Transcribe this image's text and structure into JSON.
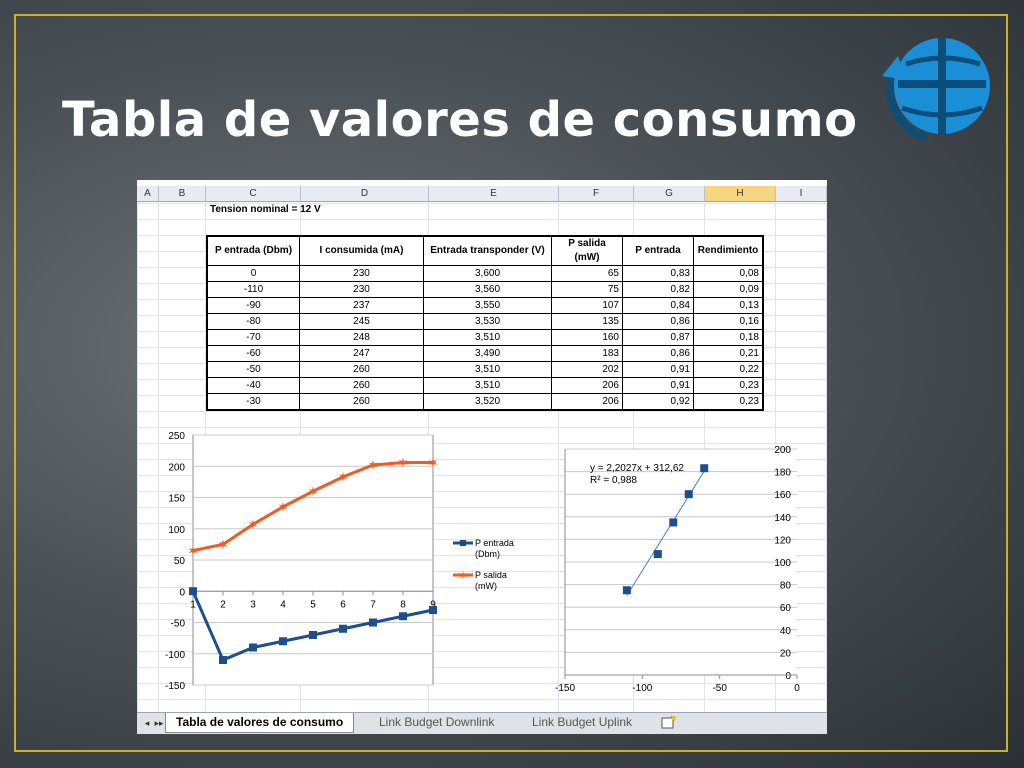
{
  "slide": {
    "title": "Tabla de valores de consumo"
  },
  "sheet": {
    "columns": [
      "A",
      "B",
      "C",
      "D",
      "E",
      "F",
      "G",
      "H",
      "I"
    ],
    "selected_column": "H",
    "nominal_label": "Tension nominal = 12 V",
    "table": {
      "headers": [
        "P entrada (Dbm)",
        "I consumida (mA)",
        "Entrada transponder (V)",
        "P salida (mW)",
        "P entrada",
        "Rendimiento"
      ],
      "rows": [
        [
          "0",
          "230",
          "3,600",
          "65",
          "0,83",
          "0,08"
        ],
        [
          "-110",
          "230",
          "3,560",
          "75",
          "0,82",
          "0,09"
        ],
        [
          "-90",
          "237",
          "3,550",
          "107",
          "0,84",
          "0,13"
        ],
        [
          "-80",
          "245",
          "3,530",
          "135",
          "0,86",
          "0,16"
        ],
        [
          "-70",
          "248",
          "3,510",
          "160",
          "0,87",
          "0,18"
        ],
        [
          "-60",
          "247",
          "3,490",
          "183",
          "0,86",
          "0,21"
        ],
        [
          "-50",
          "260",
          "3,510",
          "202",
          "0,91",
          "0,22"
        ],
        [
          "-40",
          "260",
          "3,510",
          "206",
          "0,91",
          "0,23"
        ],
        [
          "-30",
          "260",
          "3,520",
          "206",
          "0,92",
          "0,23"
        ]
      ]
    },
    "tabs": {
      "nav_first": "◂",
      "nav_last": "▸▸",
      "items": [
        "Tabla de valores de consumo",
        "Link Budget Downlink",
        "Link Budget Uplink"
      ],
      "active": 0
    }
  },
  "colors": {
    "series_blue": "#1f4e8c",
    "series_orange": "#f05a23",
    "frame": "#c9b229",
    "logo": "#1a8fd6"
  },
  "chart_data": [
    {
      "type": "line",
      "x": [
        1,
        2,
        3,
        4,
        5,
        6,
        7,
        8,
        9
      ],
      "xlim": [
        1,
        9
      ],
      "ylim": [
        -150,
        250
      ],
      "yticks": [
        -150,
        -100,
        -50,
        0,
        50,
        100,
        150,
        200,
        250
      ],
      "grid": "horizontal",
      "legend": "right",
      "series": [
        {
          "name": "P entrada (Dbm)",
          "values": [
            0,
            -110,
            -90,
            -80,
            -70,
            -60,
            -50,
            -40,
            -30
          ],
          "color": "#1f4e8c",
          "marker": "square"
        },
        {
          "name": "P salida (mW)",
          "values": [
            65,
            75,
            107,
            135,
            160,
            183,
            202,
            206,
            206
          ],
          "color": "#f05a23",
          "marker": "star"
        }
      ]
    },
    {
      "type": "scatter",
      "xlim": [
        -150,
        0
      ],
      "ylim": [
        0,
        200
      ],
      "xticks": [
        -150,
        -100,
        -50,
        0
      ],
      "yticks": [
        0,
        20,
        40,
        60,
        80,
        100,
        120,
        140,
        160,
        180,
        200
      ],
      "grid": "horizontal",
      "y_axis_position": "right",
      "points": [
        {
          "x": -110,
          "y": 75
        },
        {
          "x": -90,
          "y": 107
        },
        {
          "x": -80,
          "y": 135
        },
        {
          "x": -70,
          "y": 160
        },
        {
          "x": -60,
          "y": 183
        }
      ],
      "trendline": {
        "equation": "y = 2,2027x + 312,62",
        "r2": "R² = 0,988",
        "slope": 2.2027,
        "intercept": 312.62,
        "x_range": [
          -110,
          -60
        ]
      }
    }
  ]
}
